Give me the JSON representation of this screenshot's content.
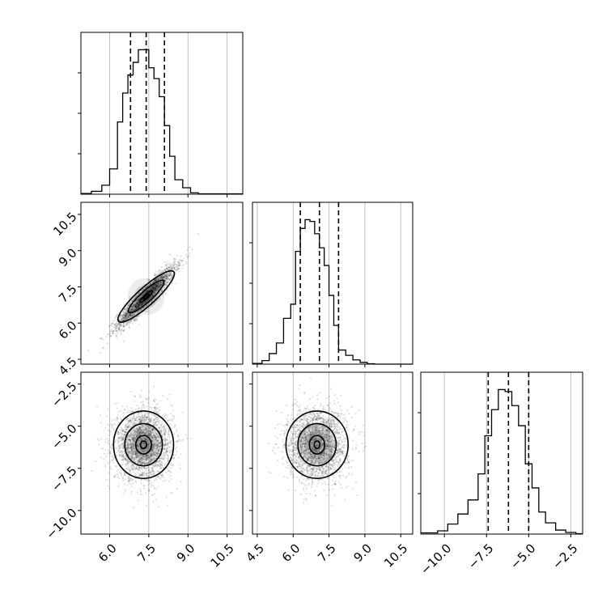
{
  "chart_data": {
    "type": "corner",
    "parameters": 3,
    "colors": {
      "line": "#000000",
      "grid": "#b0b0b0",
      "frame": "#000000"
    },
    "axes": {
      "p0": {
        "range": [
          4.9,
          11.1
        ],
        "ticks": [
          6.0,
          7.5,
          9.0,
          10.5
        ],
        "tick_labels": [
          "6.0",
          "7.5",
          "9.0",
          "10.5"
        ]
      },
      "p1": {
        "range": [
          4.3,
          11.0
        ],
        "ticks": [
          4.5,
          6.0,
          7.5,
          9.0,
          10.5
        ],
        "tick_labels": [
          "4.5",
          "6.0",
          "7.5",
          "9.0",
          "10.5"
        ]
      },
      "p2": {
        "range": [
          -11.4,
          -1.8
        ],
        "ticks": [
          -10.0,
          -7.5,
          -5.0,
          -2.5
        ],
        "tick_labels": [
          "−10.0",
          "−7.5",
          "−5.0",
          "−2.5"
        ]
      }
    },
    "histograms": [
      {
        "parameter": "p0",
        "bin_edges": [
          4.9,
          5.3,
          5.7,
          6.0,
          6.3,
          6.5,
          6.7,
          6.9,
          7.1,
          7.3,
          7.5,
          7.7,
          7.9,
          8.1,
          8.3,
          8.5,
          8.8,
          9.1,
          9.4,
          11.1
        ],
        "counts": [
          2,
          8,
          25,
          70,
          200,
          280,
          330,
          365,
          400,
          400,
          350,
          320,
          270,
          190,
          105,
          40,
          18,
          4,
          1
        ],
        "quantiles": [
          6.8,
          7.4,
          8.1
        ]
      },
      {
        "parameter": "p1",
        "bin_edges": [
          4.3,
          4.7,
          5.0,
          5.3,
          5.6,
          5.9,
          6.1,
          6.3,
          6.5,
          6.7,
          6.9,
          7.1,
          7.3,
          7.5,
          7.7,
          7.9,
          8.2,
          8.5,
          8.8,
          9.1,
          9.4,
          11.0
        ],
        "counts": [
          2,
          10,
          30,
          60,
          130,
          170,
          320,
          385,
          410,
          405,
          370,
          330,
          280,
          195,
          110,
          40,
          25,
          12,
          5,
          1,
          0
        ],
        "quantiles": [
          6.3,
          7.1,
          7.9
        ]
      },
      {
        "parameter": "p2",
        "bin_edges": [
          -11.4,
          -10.4,
          -9.8,
          -9.2,
          -8.6,
          -8.0,
          -7.6,
          -7.2,
          -6.8,
          -6.4,
          -6.0,
          -5.6,
          -5.2,
          -4.8,
          -4.4,
          -4.0,
          -3.4,
          -2.8,
          -2.2,
          -1.8
        ],
        "counts": [
          3,
          8,
          25,
          50,
          85,
          150,
          245,
          310,
          360,
          355,
          320,
          270,
          175,
          115,
          55,
          28,
          10,
          4,
          1
        ],
        "quantiles": [
          -7.4,
          -6.2,
          -5.0
        ]
      }
    ],
    "scatter_2d": [
      {
        "x_param": "p0",
        "y_param": "p1",
        "center": [
          7.4,
          7.1
        ],
        "spread": [
          0.55,
          0.62
        ],
        "correlation": 0.93,
        "contour_levels": [
          [
            0.1,
            0.09
          ],
          [
            0.22,
            0.2
          ],
          [
            0.62,
            0.55
          ],
          [
            0.98,
            0.88
          ]
        ]
      },
      {
        "x_param": "p0",
        "y_param": "p2",
        "center": [
          7.3,
          -6.1
        ],
        "spread": [
          0.55,
          1.05
        ],
        "correlation": 0.0,
        "contour_levels": [
          [
            0.12,
            0.22
          ],
          [
            0.3,
            0.55
          ],
          [
            0.72,
            1.25
          ],
          [
            1.15,
            2.0
          ]
        ]
      },
      {
        "x_param": "p1",
        "y_param": "p2",
        "center": [
          7.0,
          -6.1
        ],
        "spread": [
          0.62,
          1.05
        ],
        "correlation": 0.0,
        "contour_levels": [
          [
            0.12,
            0.22
          ],
          [
            0.32,
            0.55
          ],
          [
            0.8,
            1.25
          ],
          [
            1.3,
            2.0
          ]
        ]
      }
    ]
  }
}
